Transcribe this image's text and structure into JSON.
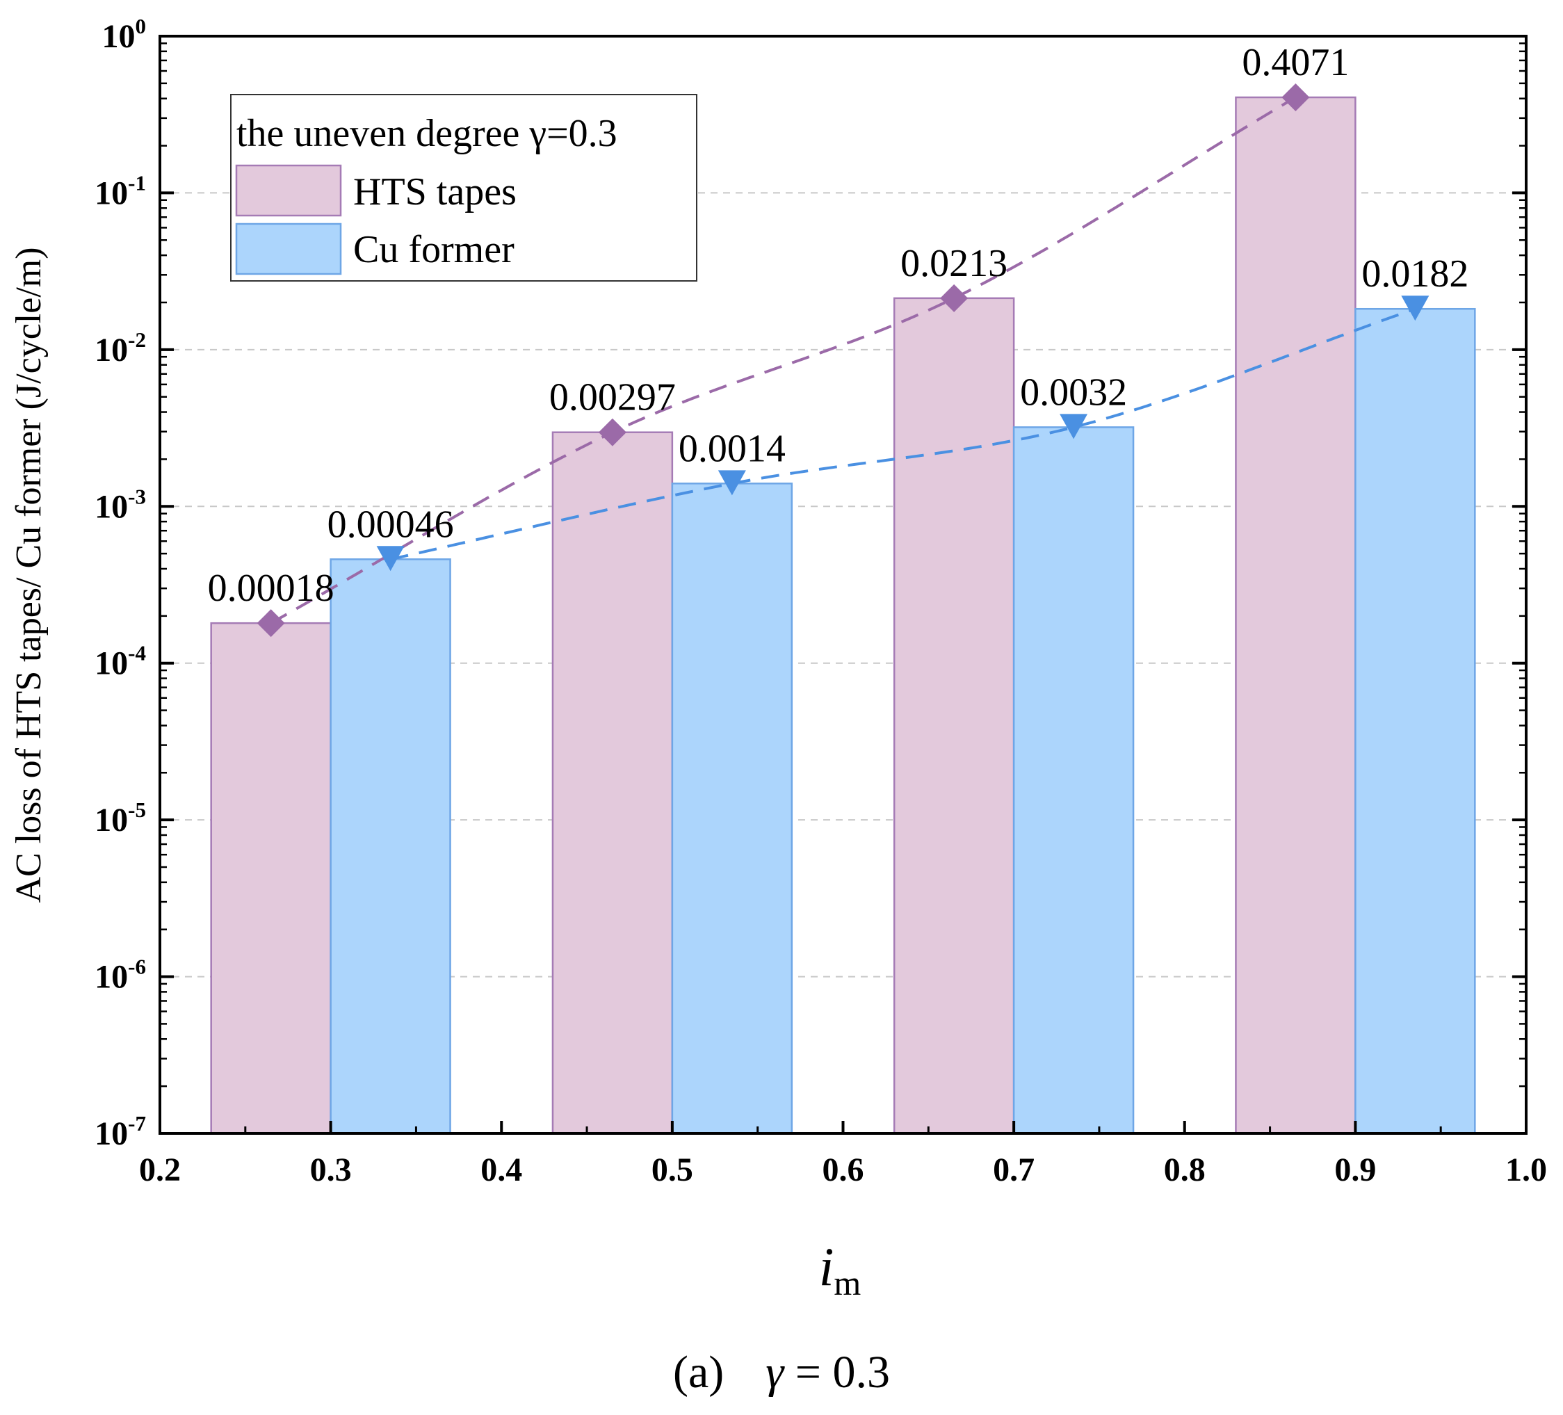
{
  "chart_data": {
    "type": "bar",
    "yscale": "log",
    "x": [
      0.3,
      0.5,
      0.7,
      0.9
    ],
    "xlim": [
      0.2,
      1.0
    ],
    "ylim": [
      1e-07,
      1
    ],
    "xticks": [
      "0.2",
      "0.3",
      "0.4",
      "0.5",
      "0.6",
      "0.7",
      "0.8",
      "0.9",
      "1.0"
    ],
    "ytick_exponents": [
      "0",
      "-1",
      "-2",
      "-3",
      "-4",
      "-5",
      "-6",
      "-7"
    ],
    "ytick_base": "10",
    "ylabel": "AC loss of HTS tapes/ Cu former (J/cycle/m)",
    "xlabel": {
      "main": "i",
      "sub": "m"
    },
    "legend": {
      "title": "the uneven degree γ=0.3",
      "placement": "top-left",
      "entries": [
        "HTS tapes",
        "Cu former"
      ]
    },
    "grid": "horizontal dashed",
    "series": [
      {
        "name": "HTS tapes",
        "values": [
          0.00018,
          0.00297,
          0.0213,
          0.4071
        ],
        "labels": [
          "0.00018",
          "0.00297",
          "0.0213",
          "0.4071"
        ],
        "marker": "diamond",
        "fill": "#e3c9dc",
        "stroke": "#a57bb5",
        "line_color": "#9b6aa8"
      },
      {
        "name": "Cu former",
        "values": [
          0.00046,
          0.0014,
          0.0032,
          0.0182
        ],
        "labels": [
          "0.00046",
          "0.0014",
          "0.0032",
          "0.0182"
        ],
        "marker": "triangle-down",
        "fill": "#acd5fc",
        "stroke": "#6ea6e6",
        "line_color": "#4a90e2"
      }
    ],
    "caption": {
      "tag": "(a)",
      "symbol": "γ",
      "rest": " = 0.3"
    }
  }
}
